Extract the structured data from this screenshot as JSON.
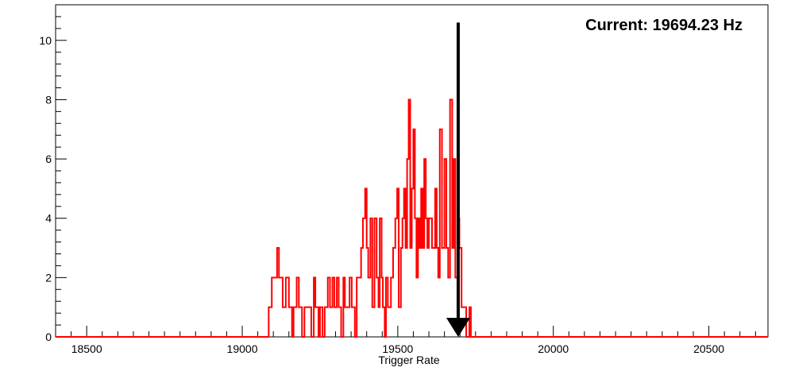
{
  "chart_data": {
    "type": "bar",
    "title": "",
    "annotation": "Current: 19694.23 Hz",
    "current_value": 19694.23,
    "xlabel": "Trigger Rate",
    "ylabel": "",
    "xlim": [
      18400,
      20690
    ],
    "ylim": [
      0,
      11.2
    ],
    "x_tick_labels": [
      "18500",
      "19000",
      "19500",
      "20000",
      "20500"
    ],
    "y_tick_labels": [
      "0",
      "2",
      "4",
      "6",
      "8",
      "10"
    ],
    "grid": false,
    "legend": "none",
    "series": [
      {
        "color": "#ff0000",
        "step_values": [
          [
            18400,
            0
          ],
          [
            19085,
            1
          ],
          [
            19095,
            2
          ],
          [
            19112,
            3
          ],
          [
            19118,
            2
          ],
          [
            19130,
            1
          ],
          [
            19140,
            2
          ],
          [
            19150,
            1
          ],
          [
            19160,
            0
          ],
          [
            19165,
            1
          ],
          [
            19175,
            2
          ],
          [
            19182,
            1
          ],
          [
            19192,
            0
          ],
          [
            19200,
            1
          ],
          [
            19215,
            1
          ],
          [
            19222,
            0
          ],
          [
            19230,
            2
          ],
          [
            19235,
            1
          ],
          [
            19245,
            0
          ],
          [
            19250,
            1
          ],
          [
            19258,
            0
          ],
          [
            19265,
            1
          ],
          [
            19275,
            2
          ],
          [
            19282,
            1
          ],
          [
            19290,
            2
          ],
          [
            19296,
            1
          ],
          [
            19304,
            2
          ],
          [
            19310,
            1
          ],
          [
            19318,
            0
          ],
          [
            19325,
            2
          ],
          [
            19330,
            1
          ],
          [
            19345,
            2
          ],
          [
            19352,
            1
          ],
          [
            19362,
            0
          ],
          [
            19368,
            2
          ],
          [
            19375,
            2
          ],
          [
            19382,
            3
          ],
          [
            19388,
            4
          ],
          [
            19395,
            5
          ],
          [
            19400,
            3
          ],
          [
            19405,
            2
          ],
          [
            19412,
            4
          ],
          [
            19418,
            1
          ],
          [
            19425,
            4
          ],
          [
            19432,
            2
          ],
          [
            19438,
            1
          ],
          [
            19442,
            4
          ],
          [
            19448,
            2
          ],
          [
            19452,
            1
          ],
          [
            19458,
            0
          ],
          [
            19462,
            2
          ],
          [
            19468,
            1
          ],
          [
            19478,
            2
          ],
          [
            19485,
            3
          ],
          [
            19492,
            4
          ],
          [
            19498,
            5
          ],
          [
            19503,
            1
          ],
          [
            19510,
            3
          ],
          [
            19515,
            4
          ],
          [
            19520,
            5
          ],
          [
            19525,
            3
          ],
          [
            19530,
            6
          ],
          [
            19535,
            8
          ],
          [
            19540,
            3
          ],
          [
            19545,
            5
          ],
          [
            19550,
            7
          ],
          [
            19555,
            4
          ],
          [
            19560,
            2
          ],
          [
            19565,
            4
          ],
          [
            19570,
            3
          ],
          [
            19575,
            5
          ],
          [
            19580,
            3
          ],
          [
            19585,
            6
          ],
          [
            19590,
            4
          ],
          [
            19595,
            3
          ],
          [
            19600,
            4
          ],
          [
            19610,
            3
          ],
          [
            19620,
            5
          ],
          [
            19625,
            3
          ],
          [
            19630,
            2
          ],
          [
            19635,
            7
          ],
          [
            19642,
            3
          ],
          [
            19650,
            6
          ],
          [
            19656,
            3
          ],
          [
            19662,
            2
          ],
          [
            19668,
            8
          ],
          [
            19675,
            3
          ],
          [
            19680,
            6
          ],
          [
            19685,
            2
          ],
          [
            19692,
            4
          ],
          [
            19698,
            3
          ],
          [
            19705,
            1
          ],
          [
            19720,
            0
          ],
          [
            19730,
            1
          ],
          [
            19735,
            0
          ],
          [
            20690,
            0
          ]
        ]
      }
    ],
    "arrow": {
      "x": 19694.23,
      "from_y": 10.6,
      "to_y": 0
    }
  }
}
